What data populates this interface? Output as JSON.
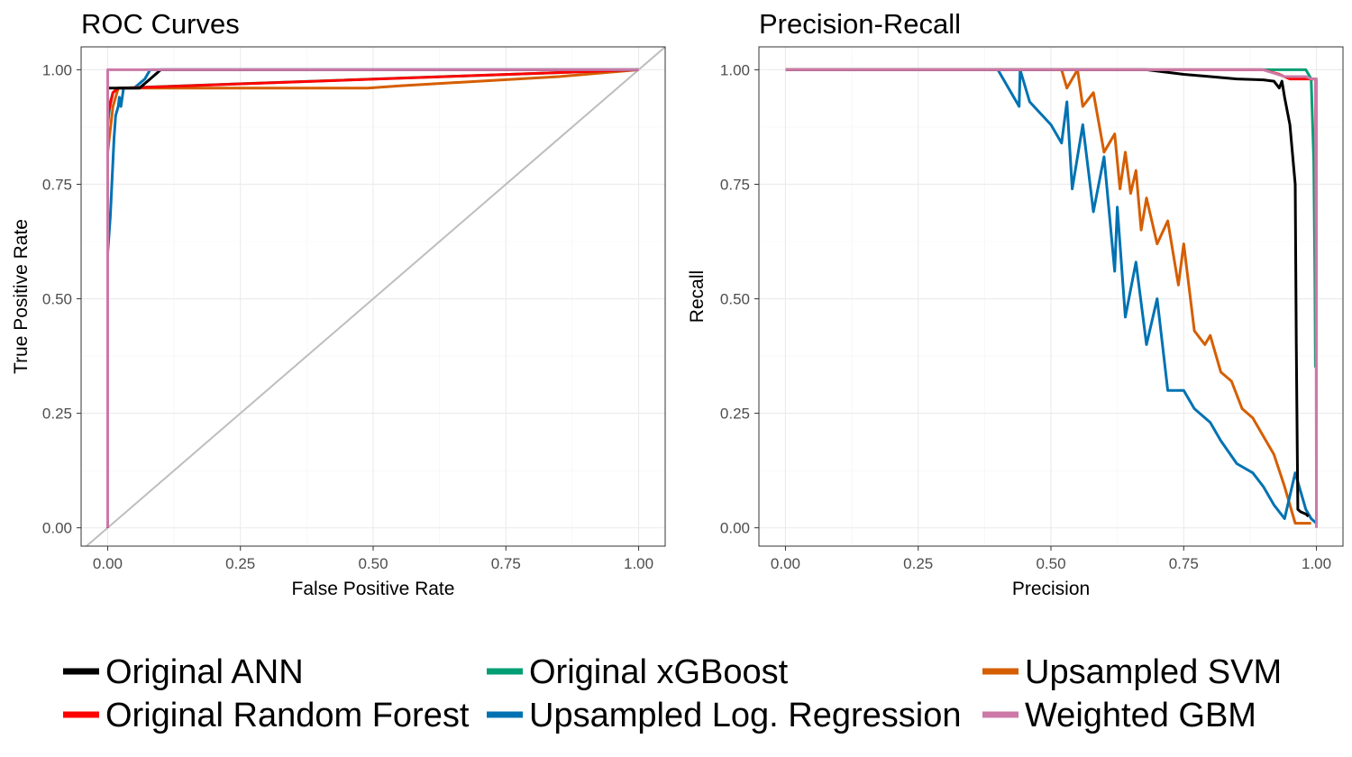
{
  "colors": {
    "background": "#ffffff",
    "grid": "#ebebeb",
    "diagonal": "#bebebe"
  },
  "legend": {
    "items": [
      {
        "label": "Original ANN",
        "color": "#000000"
      },
      {
        "label": "Original Random Forest",
        "color": "#ff0000"
      },
      {
        "label": "Original xGBoost",
        "color": "#009e73"
      },
      {
        "label": "Upsampled Log. Regression",
        "color": "#0072b2"
      },
      {
        "label": "Upsampled SVM",
        "color": "#d55e00"
      },
      {
        "label": "Weighted GBM",
        "color": "#cc79a7"
      }
    ],
    "position": "bottom"
  },
  "chart_data": [
    {
      "type": "line",
      "title": "ROC Curves",
      "xlabel": "False Positive Rate",
      "ylabel": "True Positive Rate",
      "xlim": [
        -0.05,
        1.05
      ],
      "ylim": [
        -0.04,
        1.05
      ],
      "xticks": [
        "0.00",
        "0.25",
        "0.50",
        "0.75",
        "1.00"
      ],
      "yticks": [
        "0.00",
        "0.25",
        "0.50",
        "0.75",
        "1.00"
      ],
      "grid": true,
      "reference_line": {
        "x": [
          -0.05,
          1.05
        ],
        "y": [
          -0.05,
          1.05
        ],
        "color": "#bebebe"
      },
      "series": [
        {
          "name": "Original ANN",
          "x": [
            0,
            0,
            0.01,
            0.04,
            0.05,
            0.06,
            0.08,
            0.1,
            1
          ],
          "y": [
            0,
            0.96,
            0.96,
            0.96,
            0.96,
            0.96,
            0.98,
            1,
            1
          ]
        },
        {
          "name": "Original Random Forest",
          "x": [
            0,
            0,
            0.01,
            0.02,
            0.03,
            1
          ],
          "y": [
            0,
            0.9,
            0.95,
            0.96,
            0.96,
            1
          ]
        },
        {
          "name": "Original xGBoost",
          "x": [
            0,
            0,
            0.005,
            0.01,
            0.02,
            1
          ],
          "y": [
            0,
            0.88,
            0.93,
            0.95,
            0.96,
            1
          ]
        },
        {
          "name": "Upsampled Log. Regression",
          "x": [
            0,
            0,
            0.005,
            0.01,
            0.012,
            0.015,
            0.02,
            0.022,
            0.025,
            0.03,
            0.05,
            0.07,
            0.08,
            0.08,
            1
          ],
          "y": [
            0,
            0.6,
            0.68,
            0.8,
            0.85,
            0.9,
            0.92,
            0.94,
            0.92,
            0.96,
            0.96,
            0.98,
            1,
            1,
            1
          ]
        },
        {
          "name": "Upsampled SVM",
          "x": [
            0,
            0,
            0.003,
            0.006,
            0.01,
            0.015,
            0.02,
            0.03,
            0.1,
            0.2,
            0.3,
            0.49,
            0.55,
            0.7,
            0.85,
            1
          ],
          "y": [
            0,
            0.82,
            0.85,
            0.88,
            0.92,
            0.94,
            0.96,
            0.96,
            0.96,
            0.96,
            0.96,
            0.96,
            0.965,
            0.975,
            0.985,
            1
          ]
        },
        {
          "name": "Weighted GBM",
          "x": [
            0,
            0,
            1
          ],
          "y": [
            0,
            1,
            1
          ]
        }
      ]
    },
    {
      "type": "line",
      "title": "Precision-Recall",
      "xlabel": "Precision",
      "ylabel": "Recall",
      "xlim": [
        -0.05,
        1.05
      ],
      "ylim": [
        -0.04,
        1.05
      ],
      "xticks": [
        "0.00",
        "0.25",
        "0.50",
        "0.75",
        "1.00"
      ],
      "yticks": [
        "0.00",
        "0.25",
        "0.50",
        "0.75",
        "1.00"
      ],
      "grid": true,
      "series": [
        {
          "name": "Original ANN",
          "x": [
            0,
            0.68,
            0.75,
            0.8,
            0.85,
            0.9,
            0.92,
            0.93,
            0.935,
            0.94,
            0.95,
            0.96,
            0.962,
            0.965,
            0.97,
            0.98,
            0.985
          ],
          "y": [
            1,
            1,
            0.99,
            0.985,
            0.98,
            0.978,
            0.975,
            0.96,
            0.975,
            0.94,
            0.88,
            0.75,
            0.4,
            0.04,
            0.035,
            0.03,
            0.025
          ]
        },
        {
          "name": "Original Random Forest",
          "x": [
            0,
            0.9,
            0.93,
            0.95,
            0.96,
            0.97,
            0.98,
            0.99,
            1
          ],
          "y": [
            1,
            1,
            0.99,
            0.98,
            0.98,
            0.98,
            0.98,
            0.98,
            0.98
          ]
        },
        {
          "name": "Original xGBoost",
          "x": [
            0,
            0.8,
            0.85,
            0.9,
            0.95,
            0.98,
            0.99,
            0.995,
            0.997,
            0.998
          ],
          "y": [
            1,
            1,
            1,
            1,
            1,
            1,
            0.98,
            0.8,
            0.55,
            0.35
          ]
        },
        {
          "name": "Upsampled Log. Regression",
          "x": [
            0.4,
            0.42,
            0.44,
            0.442,
            0.46,
            0.5,
            0.52,
            0.53,
            0.54,
            0.56,
            0.58,
            0.6,
            0.62,
            0.625,
            0.64,
            0.66,
            0.68,
            0.7,
            0.72,
            0.75,
            0.77,
            0.8,
            0.82,
            0.85,
            0.88,
            0.9,
            0.92,
            0.94,
            0.96,
            0.98,
            0.99,
            1
          ],
          "y": [
            1,
            0.96,
            0.92,
            1,
            0.93,
            0.88,
            0.84,
            0.93,
            0.74,
            0.88,
            0.69,
            0.81,
            0.56,
            0.7,
            0.46,
            0.58,
            0.4,
            0.5,
            0.3,
            0.3,
            0.26,
            0.23,
            0.19,
            0.14,
            0.12,
            0.09,
            0.05,
            0.02,
            0.12,
            0.04,
            0.02,
            0.01
          ]
        },
        {
          "name": "Upsampled SVM",
          "x": [
            0.52,
            0.53,
            0.55,
            0.56,
            0.58,
            0.6,
            0.62,
            0.63,
            0.64,
            0.65,
            0.66,
            0.67,
            0.68,
            0.7,
            0.72,
            0.74,
            0.75,
            0.77,
            0.79,
            0.8,
            0.82,
            0.84,
            0.86,
            0.88,
            0.9,
            0.92,
            0.94,
            0.96,
            0.98,
            0.99
          ],
          "y": [
            1,
            0.96,
            1,
            0.92,
            0.95,
            0.82,
            0.86,
            0.74,
            0.82,
            0.73,
            0.78,
            0.65,
            0.72,
            0.62,
            0.67,
            0.53,
            0.62,
            0.43,
            0.4,
            0.42,
            0.34,
            0.32,
            0.26,
            0.24,
            0.2,
            0.16,
            0.09,
            0.01,
            0.01,
            0.01
          ]
        },
        {
          "name": "Weighted GBM",
          "x": [
            0,
            0.2,
            0.5,
            0.7,
            0.8,
            0.9,
            0.94,
            0.96,
            0.98,
            0.99,
            0.995,
            0.998,
            0.999,
            1,
            1,
            1
          ],
          "y": [
            1,
            1,
            1,
            1,
            1,
            1,
            0.985,
            0.985,
            0.985,
            0.98,
            0.98,
            0.98,
            0.6,
            0.1,
            0.98,
            0
          ]
        }
      ]
    }
  ]
}
